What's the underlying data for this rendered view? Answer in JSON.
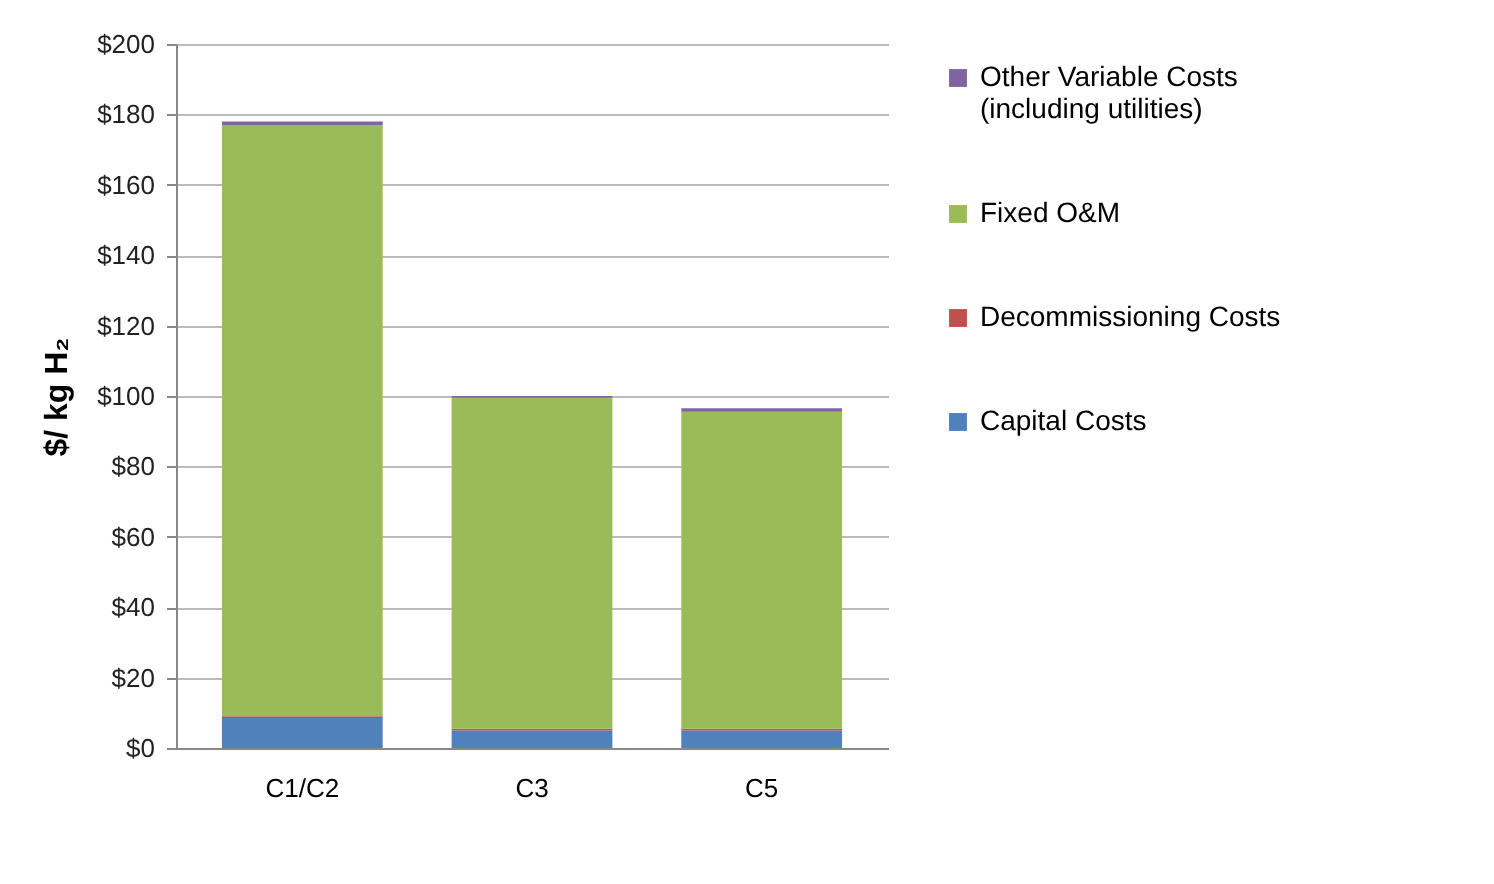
{
  "chart_data": {
    "type": "bar",
    "stacked": true,
    "ylabel": "$/ kg H₂",
    "categories": [
      "C1/C2",
      "C3",
      "C5"
    ],
    "series": [
      {
        "name": "Capital Costs",
        "color": "#4f81bd",
        "values": [
          8.5,
          5,
          5
        ]
      },
      {
        "name": "Decommissioning Costs",
        "color": "#c0504d",
        "values": [
          0.5,
          0.5,
          0.5
        ]
      },
      {
        "name": "Fixed O&M",
        "color": "#9bbb59",
        "values": [
          168,
          94,
          90
        ]
      },
      {
        "name": "Other Variable Costs (including utilities)",
        "color": "#8064a2",
        "values": [
          1,
          0.5,
          1
        ]
      }
    ],
    "ylim": [
      0,
      200
    ],
    "yticks": [
      {
        "value": 0,
        "label": "$0"
      },
      {
        "value": 20,
        "label": "$20"
      },
      {
        "value": 40,
        "label": "$40"
      },
      {
        "value": 60,
        "label": "$60"
      },
      {
        "value": 80,
        "label": "$80"
      },
      {
        "value": 100,
        "label": "$100"
      },
      {
        "value": 120,
        "label": "$120"
      },
      {
        "value": 140,
        "label": "$140"
      },
      {
        "value": 160,
        "label": "$160"
      },
      {
        "value": 180,
        "label": "$180"
      },
      {
        "value": 200,
        "label": "$200"
      }
    ],
    "grid": "y",
    "legend": "right"
  }
}
